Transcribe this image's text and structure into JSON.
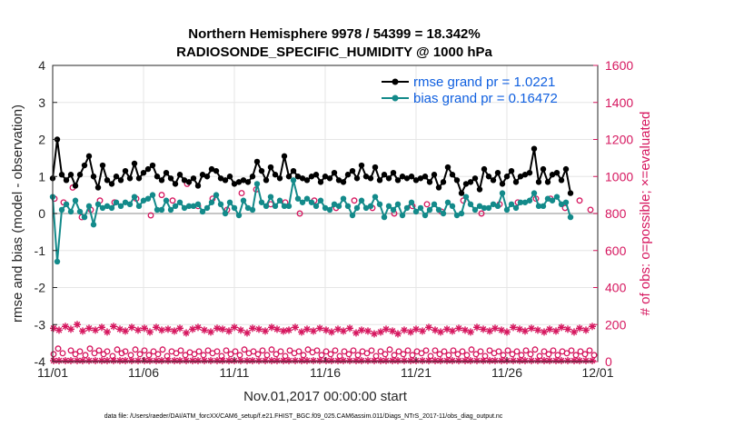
{
  "chart_data": {
    "type": "line",
    "title_line1": "Northern Hemisphere 9978 / 54399 = 18.342%",
    "title_line2": "RADIOSONDE_SPECIFIC_HUMIDITY @ 1000 hPa",
    "xlabel": "Nov.01,2017 00:00:00 start",
    "ylabel": "rmse and bias (model - observation)",
    "y2label": "# of obs: o=possible; ×=evaluated",
    "footnote": "data file: /Users/raeder/DAI/ATM_forcXX/CAM6_setup/f.e21.FHIST_BGC.f09_025.CAM6assim.011/Diags_NTrS_2017-11/obs_diag_output.nc",
    "x_tick_labels": [
      "11/01",
      "11/06",
      "11/11",
      "11/16",
      "11/21",
      "11/26",
      "12/01"
    ],
    "x_tick_days": [
      0,
      5,
      10,
      15,
      20,
      25,
      30
    ],
    "xlim": [
      0,
      30
    ],
    "ylim": [
      -4,
      4
    ],
    "y_ticks": [
      -4,
      -3,
      -2,
      -1,
      0,
      1,
      2,
      3,
      4
    ],
    "y2lim": [
      0,
      1600
    ],
    "y2_ticks": [
      0,
      200,
      400,
      600,
      800,
      1000,
      1200,
      1400,
      1600
    ],
    "legend": {
      "rmse": "rmse grand pr = 1.0221",
      "bias": "bias grand pr = 0.16472"
    },
    "colors": {
      "rmse": "#000000",
      "bias": "#138a8a",
      "obs": "#d6175f",
      "zero_line": "#b3b3b3",
      "legend_text": "#1060e0"
    },
    "series": [
      {
        "name": "rmse",
        "values": [
          0.95,
          2.0,
          1.05,
          0.9,
          1.05,
          0.75,
          1.05,
          1.3,
          1.55,
          1.0,
          0.7,
          1.3,
          0.9,
          0.8,
          1.0,
          0.9,
          1.15,
          0.95,
          1.35,
          0.95,
          1.1,
          1.2,
          1.3,
          1.0,
          0.9,
          1.1,
          0.95,
          0.8,
          1.05,
          0.9,
          0.85,
          0.95,
          0.75,
          1.05,
          1.0,
          1.2,
          1.15,
          0.95,
          0.9,
          1.0,
          0.8,
          0.85,
          0.9,
          0.85,
          1.0,
          1.4,
          1.15,
          0.9,
          1.25,
          1.05,
          0.95,
          1.55,
          1.0,
          1.15,
          1.0,
          0.95,
          0.9,
          1.0,
          1.05,
          0.85,
          1.0,
          0.95,
          1.1,
          0.9,
          0.85,
          1.05,
          1.15,
          0.95,
          1.3,
          1.0,
          0.95,
          1.25,
          0.9,
          1.05,
          0.95,
          1.1,
          0.9,
          1.0,
          0.95,
          1.0,
          0.9,
          0.95,
          1.0,
          0.85,
          1.05,
          0.7,
          0.85,
          1.25,
          1.05,
          0.9,
          0.55,
          0.8,
          0.85,
          0.95,
          0.65,
          1.2,
          1.0,
          0.9,
          1.1,
          0.8,
          1.0,
          1.15,
          0.85,
          1.0,
          1.05,
          1.1,
          1.75,
          0.85,
          1.2,
          0.85,
          1.05,
          1.1,
          0.9,
          1.2,
          0.55
        ],
        "x_start": 0,
        "x_step": 0.25
      },
      {
        "name": "bias",
        "values": [
          0.45,
          -1.3,
          0.1,
          0.25,
          0.05,
          0.35,
          0.05,
          -0.1,
          0.2,
          -0.3,
          0.25,
          0.15,
          0.2,
          0.15,
          0.3,
          0.2,
          0.3,
          0.25,
          0.45,
          0.2,
          0.35,
          0.4,
          0.5,
          0.1,
          0.1,
          0.35,
          0.1,
          0.2,
          0.3,
          0.15,
          0.2,
          0.2,
          0.25,
          0.05,
          0.15,
          0.3,
          0.5,
          0.25,
          0.0,
          0.3,
          0.15,
          -0.05,
          0.35,
          0.15,
          0.1,
          0.8,
          0.3,
          0.2,
          0.45,
          0.2,
          0.35,
          0.2,
          0.2,
          0.9,
          0.4,
          0.3,
          0.4,
          0.3,
          0.2,
          0.35,
          0.15,
          0.1,
          0.25,
          0.2,
          0.4,
          0.2,
          -0.05,
          0.15,
          0.35,
          0.15,
          0.2,
          0.45,
          0.25,
          -0.1,
          0.2,
          0.1,
          0.25,
          -0.05,
          0.15,
          0.3,
          0.05,
          0.15,
          -0.05,
          0.1,
          0.25,
          0.1,
          0.0,
          0.3,
          0.2,
          -0.05,
          0.0,
          0.45,
          0.25,
          0.1,
          0.2,
          0.15,
          0.15,
          0.25,
          0.2,
          0.55,
          0.1,
          0.25,
          0.15,
          0.3,
          0.3,
          0.35,
          0.55,
          0.2,
          0.2,
          0.4,
          0.35,
          0.45,
          0.25,
          0.3,
          -0.1
        ],
        "x_start": 0,
        "x_step": 0.25
      },
      {
        "name": "obs_possible",
        "x": [
          0.05,
          0.3,
          0.55,
          1.0,
          1.25,
          1.5,
          1.8,
          2.05,
          2.3,
          2.55,
          2.8,
          3.0,
          3.3,
          3.55,
          3.8,
          4.0,
          4.3,
          4.55,
          4.8,
          5.05,
          5.3,
          5.55,
          5.8,
          6.05,
          6.3,
          6.55,
          6.8,
          7.05,
          7.3,
          7.55,
          7.8,
          8.05,
          8.3,
          8.55,
          8.8,
          9.05,
          9.3,
          9.55,
          9.8,
          10.05,
          10.3,
          10.55,
          10.8,
          11.05,
          11.3,
          11.55,
          11.8,
          12.05,
          12.3,
          12.55,
          12.8,
          13.05,
          13.3,
          13.55,
          13.8,
          14.05,
          14.3,
          14.55,
          14.8,
          15.05,
          15.3,
          15.55,
          15.8,
          16.05,
          16.3,
          16.55,
          16.8,
          17.05,
          17.3,
          17.55,
          17.8,
          18.05,
          18.3,
          18.55,
          18.8,
          19.05,
          19.3,
          19.55,
          19.8,
          20.05,
          20.3,
          20.55,
          20.8,
          21.05,
          21.3,
          21.55,
          21.8,
          22.05,
          22.3,
          22.55,
          22.8,
          23.05,
          23.3,
          23.55,
          23.8,
          24.05,
          24.3,
          24.55,
          24.8,
          25.05,
          25.3,
          25.55,
          25.8,
          26.05,
          26.3,
          26.55,
          26.8,
          27.05,
          27.3,
          27.55,
          27.8,
          28.05,
          28.3,
          28.55,
          28.8,
          29.05,
          29.3,
          29.55,
          29.8
        ],
        "values": [
          40,
          70,
          45,
          60,
          40,
          55,
          35,
          70,
          45,
          60,
          40,
          55,
          30,
          65,
          45,
          55,
          35,
          65,
          40,
          60,
          35,
          55,
          40,
          65,
          30,
          55,
          45,
          60,
          35,
          50,
          40,
          55,
          35,
          60,
          45,
          55,
          30,
          60,
          40,
          55,
          35,
          65,
          45,
          55,
          40,
          60,
          35,
          65,
          40,
          55,
          30,
          60,
          45,
          55,
          35,
          65,
          50,
          60,
          35,
          55,
          40,
          60,
          30,
          55,
          40,
          60,
          35,
          55,
          45,
          60,
          30,
          55,
          40,
          65,
          35,
          55,
          40,
          60,
          35,
          55,
          45,
          60,
          30,
          60,
          40,
          55,
          35,
          60,
          40,
          55,
          35,
          65,
          40,
          55,
          30,
          60,
          45,
          55,
          35,
          60,
          40,
          55,
          35,
          60,
          40,
          65,
          30,
          55,
          40,
          60,
          35,
          55,
          45,
          60,
          35,
          55,
          40,
          60,
          35
        ],
        "upper_x": [
          0.1,
          0.6,
          1.1,
          1.6,
          2.1,
          2.6,
          3.4,
          4.6,
          5.4,
          6.0,
          6.6,
          7.4,
          8.0,
          8.8,
          9.6,
          10.4,
          11.2,
          12.0,
          12.8,
          13.6,
          14.4,
          15.6,
          16.6,
          17.6,
          18.8,
          19.8,
          20.6,
          21.4,
          22.6,
          23.6,
          24.6,
          25.6,
          26.6,
          27.4,
          28.2,
          29.0,
          29.6
        ],
        "upper_values": [
          880,
          860,
          940,
          780,
          820,
          870,
          860,
          880,
          790,
          900,
          870,
          960,
          840,
          880,
          820,
          910,
          930,
          850,
          860,
          800,
          870,
          830,
          870,
          830,
          800,
          840,
          850,
          810,
          870,
          800,
          850,
          860,
          880,
          880,
          830,
          870,
          820
        ]
      },
      {
        "name": "obs_evaluated",
        "x": [
          0.05,
          0.35,
          0.7,
          1.0,
          1.35,
          1.65,
          2.0,
          2.35,
          2.7,
          3.0,
          3.35,
          3.7,
          4.0,
          4.35,
          4.7,
          5.05,
          5.35,
          5.7,
          6.0,
          6.35,
          6.7,
          7.0,
          7.35,
          7.7,
          8.0,
          8.35,
          8.7,
          9.05,
          9.35,
          9.7,
          10.0,
          10.35,
          10.7,
          11.0,
          11.35,
          11.7,
          12.05,
          12.35,
          12.7,
          13.0,
          13.35,
          13.7,
          14.0,
          14.35,
          14.7,
          15.05,
          15.35,
          15.7,
          16.0,
          16.35,
          16.7,
          17.0,
          17.35,
          17.7,
          18.05,
          18.35,
          18.7,
          19.0,
          19.35,
          19.7,
          20.0,
          20.35,
          20.7,
          21.05,
          21.35,
          21.7,
          22.0,
          22.35,
          22.7,
          23.0,
          23.35,
          23.7,
          24.05,
          24.35,
          24.7,
          25.0,
          25.35,
          25.7,
          26.0,
          26.35,
          26.7,
          27.05,
          27.35,
          27.7,
          28.0,
          28.35,
          28.7,
          29.0,
          29.35,
          29.7
        ],
        "values": [
          180,
          170,
          190,
          175,
          200,
          165,
          180,
          170,
          185,
          160,
          190,
          175,
          165,
          185,
          170,
          180,
          160,
          185,
          170,
          175,
          165,
          180,
          155,
          175,
          185,
          170,
          160,
          180,
          175,
          165,
          185,
          170,
          155,
          180,
          175,
          165,
          185,
          175,
          165,
          170,
          185,
          160,
          175,
          165,
          180,
          170,
          160,
          175,
          165,
          180,
          155,
          170,
          165,
          150,
          160,
          175,
          165,
          150,
          170,
          160,
          175,
          165,
          185,
          170,
          160,
          175,
          165,
          180,
          170,
          160,
          185,
          175,
          165,
          180,
          170,
          160,
          185,
          175,
          165,
          180,
          170,
          160,
          175,
          165,
          185,
          175,
          160,
          180,
          170,
          190
        ],
        "bottom_values": 5
      }
    ]
  }
}
